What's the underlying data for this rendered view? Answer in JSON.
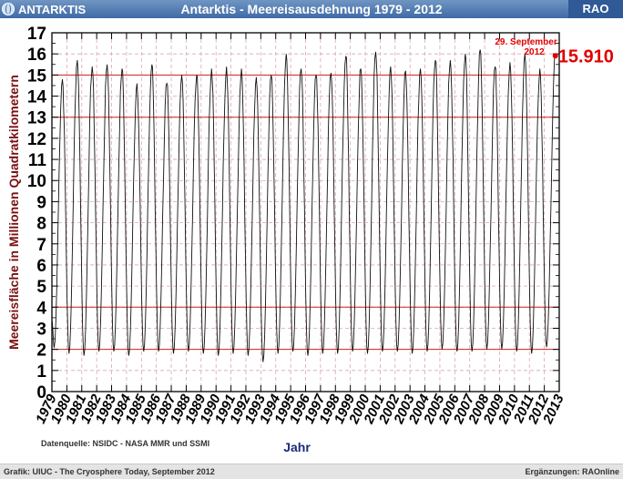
{
  "header": {
    "left_label": "ANTARKTIS",
    "title": "Antarktis - Meereisausdehnung 1979 - 2012",
    "right_label": "RAO"
  },
  "footer": {
    "left": "Grafik: UIUC - The Cryosphere Today, September 2012",
    "right": "Ergänzungen: RAOnline"
  },
  "chart_data": {
    "type": "line",
    "title": "",
    "xlabel": "Jahr",
    "ylabel": "Meereisfläche in Millionen Quadratkilometern",
    "ylim": [
      0,
      17
    ],
    "xlim": [
      1979,
      2013
    ],
    "y_ticks": [
      "0",
      "1",
      "2",
      "3",
      "4",
      "5",
      "6",
      "7",
      "8",
      "9",
      "10",
      "11",
      "12",
      "13",
      "14",
      "15",
      "16",
      "17"
    ],
    "x_ticks": [
      "1979",
      "1980",
      "1981",
      "1982",
      "1983",
      "1984",
      "1985",
      "1986",
      "1987",
      "1988",
      "1989",
      "1990",
      "1991",
      "1992",
      "1993",
      "1994",
      "1995",
      "1996",
      "1997",
      "1998",
      "1999",
      "2000",
      "2001",
      "2002",
      "2003",
      "2004",
      "2005",
      "2006",
      "2007",
      "2008",
      "2009",
      "2010",
      "2011",
      "2012",
      "2013"
    ],
    "reference_lines": [
      2,
      4,
      13,
      15
    ],
    "grid": true,
    "source_note": "Datenquelle: NSIDC - NASA MMR und SSMI",
    "annotation": {
      "date": "29. September",
      "year": "2012",
      "value": "15.910",
      "x": 2012.74,
      "y": 15.91
    },
    "series": [
      {
        "seasonal_peaks": [
          {
            "x": 1979.7,
            "y": 14.8
          },
          {
            "x": 1980.7,
            "y": 15.7
          },
          {
            "x": 1981.7,
            "y": 15.4
          },
          {
            "x": 1982.7,
            "y": 15.5
          },
          {
            "x": 1983.7,
            "y": 15.3
          },
          {
            "x": 1984.7,
            "y": 14.6
          },
          {
            "x": 1985.7,
            "y": 15.5
          },
          {
            "x": 1986.7,
            "y": 14.6
          },
          {
            "x": 1987.7,
            "y": 15.0
          },
          {
            "x": 1988.7,
            "y": 15.0
          },
          {
            "x": 1989.7,
            "y": 15.3
          },
          {
            "x": 1990.7,
            "y": 15.4
          },
          {
            "x": 1991.7,
            "y": 15.3
          },
          {
            "x": 1992.7,
            "y": 14.9
          },
          {
            "x": 1993.7,
            "y": 15.0
          },
          {
            "x": 1994.7,
            "y": 16.0
          },
          {
            "x": 1995.7,
            "y": 15.3
          },
          {
            "x": 1996.7,
            "y": 15.0
          },
          {
            "x": 1997.7,
            "y": 15.1
          },
          {
            "x": 1998.7,
            "y": 15.9
          },
          {
            "x": 1999.7,
            "y": 15.3
          },
          {
            "x": 2000.7,
            "y": 16.1
          },
          {
            "x": 2001.7,
            "y": 15.4
          },
          {
            "x": 2002.7,
            "y": 15.2
          },
          {
            "x": 2003.7,
            "y": 15.3
          },
          {
            "x": 2004.7,
            "y": 15.7
          },
          {
            "x": 2005.7,
            "y": 15.7
          },
          {
            "x": 2006.7,
            "y": 16.0
          },
          {
            "x": 2007.7,
            "y": 16.2
          },
          {
            "x": 2008.7,
            "y": 15.4
          },
          {
            "x": 2009.7,
            "y": 15.6
          },
          {
            "x": 2010.7,
            "y": 16.0
          },
          {
            "x": 2011.7,
            "y": 15.3
          },
          {
            "x": 2012.74,
            "y": 15.91
          }
        ],
        "seasonal_troughs": [
          {
            "x": 1979.15,
            "y": 2.1
          },
          {
            "x": 1980.15,
            "y": 1.8
          },
          {
            "x": 1981.15,
            "y": 1.7
          },
          {
            "x": 1982.15,
            "y": 1.9
          },
          {
            "x": 1983.15,
            "y": 1.9
          },
          {
            "x": 1984.15,
            "y": 1.7
          },
          {
            "x": 1985.15,
            "y": 1.9
          },
          {
            "x": 1986.15,
            "y": 1.9
          },
          {
            "x": 1987.15,
            "y": 1.8
          },
          {
            "x": 1988.15,
            "y": 1.9
          },
          {
            "x": 1989.15,
            "y": 1.8
          },
          {
            "x": 1990.15,
            "y": 1.7
          },
          {
            "x": 1991.15,
            "y": 1.8
          },
          {
            "x": 1992.15,
            "y": 1.7
          },
          {
            "x": 1993.15,
            "y": 1.4
          },
          {
            "x": 1994.15,
            "y": 1.8
          },
          {
            "x": 1995.15,
            "y": 1.9
          },
          {
            "x": 1996.15,
            "y": 1.7
          },
          {
            "x": 1997.15,
            "y": 1.8
          },
          {
            "x": 1998.15,
            "y": 1.8
          },
          {
            "x": 1999.15,
            "y": 1.9
          },
          {
            "x": 2000.15,
            "y": 1.8
          },
          {
            "x": 2001.15,
            "y": 1.9
          },
          {
            "x": 2002.15,
            "y": 1.9
          },
          {
            "x": 2003.15,
            "y": 1.8
          },
          {
            "x": 2004.15,
            "y": 1.9
          },
          {
            "x": 2005.15,
            "y": 2.0
          },
          {
            "x": 2006.15,
            "y": 1.9
          },
          {
            "x": 2007.15,
            "y": 1.9
          },
          {
            "x": 2008.15,
            "y": 2.0
          },
          {
            "x": 2009.15,
            "y": 2.0
          },
          {
            "x": 2010.15,
            "y": 1.9
          },
          {
            "x": 2011.15,
            "y": 1.8
          },
          {
            "x": 2012.15,
            "y": 2.1
          }
        ]
      }
    ]
  }
}
